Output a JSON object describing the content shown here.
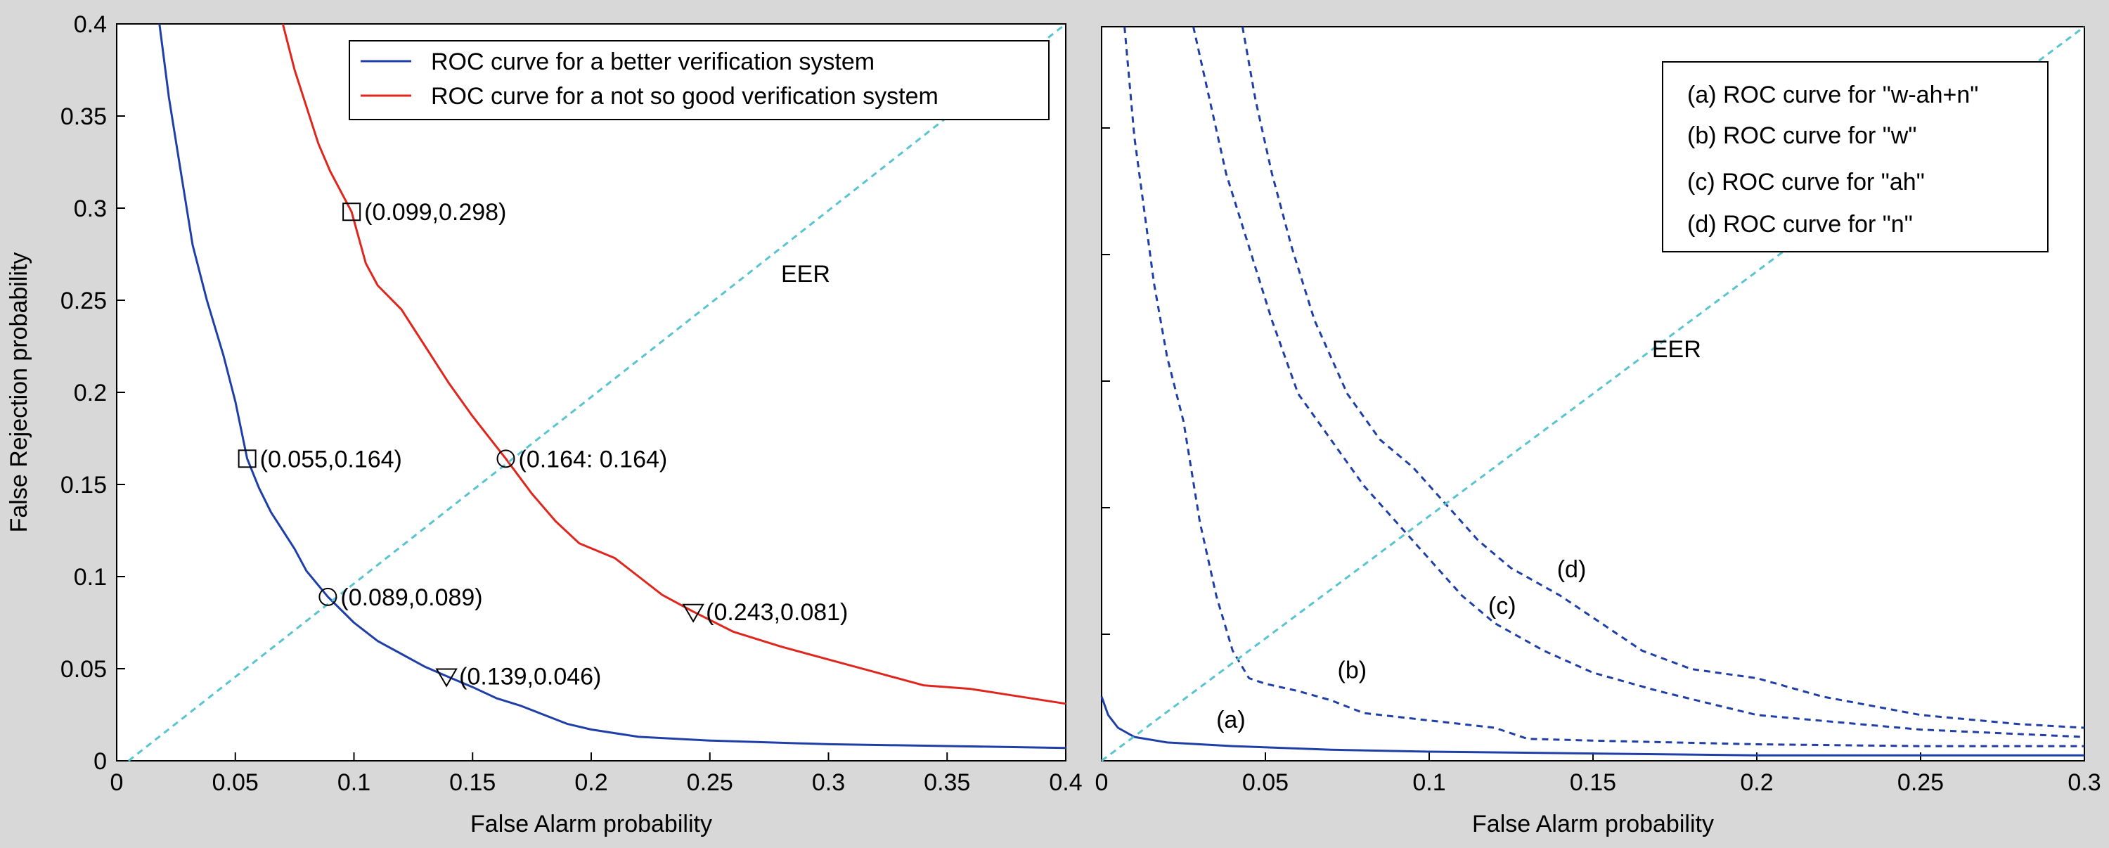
{
  "chart_data": [
    {
      "type": "line",
      "xlabel": "False Alarm probability",
      "ylabel": "False Rejection probability",
      "xlim": [
        0,
        0.4
      ],
      "ylim": [
        0,
        0.4
      ],
      "xticks": [
        "0",
        "0.05",
        "0.1",
        "0.15",
        "0.2",
        "0.25",
        "0.3",
        "0.35",
        "0.4"
      ],
      "yticks": [
        "0",
        "0.05",
        "0.1",
        "0.15",
        "0.2",
        "0.25",
        "0.3",
        "0.35",
        "0.4"
      ],
      "legend_position": "top-right",
      "eer_label": "EER",
      "series": [
        {
          "name": "ROC curve for a better verification system",
          "color": "#1f3fa8",
          "style": "solid",
          "points": [
            [
              0.018,
              0.4
            ],
            [
              0.022,
              0.36
            ],
            [
              0.027,
              0.32
            ],
            [
              0.032,
              0.28
            ],
            [
              0.038,
              0.25
            ],
            [
              0.045,
              0.22
            ],
            [
              0.05,
              0.195
            ],
            [
              0.055,
              0.164
            ],
            [
              0.06,
              0.148
            ],
            [
              0.065,
              0.135
            ],
            [
              0.07,
              0.125
            ],
            [
              0.075,
              0.115
            ],
            [
              0.08,
              0.103
            ],
            [
              0.089,
              0.089
            ],
            [
              0.1,
              0.075
            ],
            [
              0.11,
              0.065
            ],
            [
              0.12,
              0.058
            ],
            [
              0.13,
              0.051
            ],
            [
              0.139,
              0.046
            ],
            [
              0.15,
              0.04
            ],
            [
              0.16,
              0.034
            ],
            [
              0.17,
              0.03
            ],
            [
              0.18,
              0.025
            ],
            [
              0.19,
              0.02
            ],
            [
              0.2,
              0.017
            ],
            [
              0.22,
              0.013
            ],
            [
              0.25,
              0.011
            ],
            [
              0.3,
              0.009
            ],
            [
              0.35,
              0.008
            ],
            [
              0.4,
              0.007
            ]
          ]
        },
        {
          "name": "ROC curve for a not so good verification system",
          "color": "#e0261c",
          "style": "solid",
          "points": [
            [
              0.07,
              0.4
            ],
            [
              0.075,
              0.375
            ],
            [
              0.08,
              0.355
            ],
            [
              0.085,
              0.335
            ],
            [
              0.09,
              0.32
            ],
            [
              0.099,
              0.298
            ],
            [
              0.105,
              0.27
            ],
            [
              0.11,
              0.258
            ],
            [
              0.12,
              0.245
            ],
            [
              0.13,
              0.225
            ],
            [
              0.14,
              0.205
            ],
            [
              0.15,
              0.187
            ],
            [
              0.164,
              0.164
            ],
            [
              0.175,
              0.145
            ],
            [
              0.185,
              0.13
            ],
            [
              0.195,
              0.118
            ],
            [
              0.21,
              0.11
            ],
            [
              0.22,
              0.1
            ],
            [
              0.23,
              0.09
            ],
            [
              0.243,
              0.081
            ],
            [
              0.26,
              0.07
            ],
            [
              0.28,
              0.062
            ],
            [
              0.3,
              0.055
            ],
            [
              0.32,
              0.048
            ],
            [
              0.34,
              0.041
            ],
            [
              0.36,
              0.039
            ],
            [
              0.38,
              0.035
            ],
            [
              0.4,
              0.031
            ]
          ]
        },
        {
          "name": "",
          "color": "#57c4d0",
          "style": "dashed",
          "points": [
            [
              0.005,
              0.0
            ],
            [
              0.4,
              0.4
            ]
          ]
        }
      ],
      "markers": [
        {
          "shape": "square",
          "x": 0.099,
          "y": 0.298,
          "label": "(0.099,0.298)"
        },
        {
          "shape": "square",
          "x": 0.055,
          "y": 0.164,
          "label": "(0.055,0.164)"
        },
        {
          "shape": "circle",
          "x": 0.164,
          "y": 0.164,
          "label": "(0.164: 0.164)"
        },
        {
          "shape": "circle",
          "x": 0.089,
          "y": 0.089,
          "label": "(0.089,0.089)"
        },
        {
          "shape": "triangle",
          "x": 0.243,
          "y": 0.081,
          "label": "(0.243,0.081)"
        },
        {
          "shape": "triangle",
          "x": 0.139,
          "y": 0.046,
          "label": "(0.139,0.046)"
        }
      ]
    },
    {
      "type": "line",
      "xlabel": "False Alarm probability",
      "ylabel": "",
      "xlim": [
        0,
        0.3
      ],
      "ylim": [
        0,
        0.4
      ],
      "xticks": [
        "0",
        "0.05",
        "0.1",
        "0.15",
        "0.2",
        "0.25",
        "0.3"
      ],
      "yticks": [],
      "legend_position": "top-right",
      "eer_label": "EER",
      "series": [
        {
          "name": "(a) ROC curve for \"w-ah+n\"",
          "tag": "(a)",
          "color": "#1f3fa8",
          "style": "solid",
          "points": [
            [
              0.0,
              0.035
            ],
            [
              0.002,
              0.025
            ],
            [
              0.005,
              0.018
            ],
            [
              0.01,
              0.013
            ],
            [
              0.02,
              0.01
            ],
            [
              0.04,
              0.008
            ],
            [
              0.07,
              0.006
            ],
            [
              0.1,
              0.005
            ],
            [
              0.15,
              0.004
            ],
            [
              0.2,
              0.003
            ],
            [
              0.3,
              0.003
            ]
          ]
        },
        {
          "name": "(b) ROC curve for \"w\"",
          "tag": "(b)",
          "color": "#1f3fa8",
          "style": "dashed",
          "points": [
            [
              0.007,
              0.4
            ],
            [
              0.01,
              0.34
            ],
            [
              0.013,
              0.3
            ],
            [
              0.016,
              0.26
            ],
            [
              0.02,
              0.22
            ],
            [
              0.025,
              0.185
            ],
            [
              0.03,
              0.13
            ],
            [
              0.035,
              0.09
            ],
            [
              0.04,
              0.06
            ],
            [
              0.045,
              0.045
            ],
            [
              0.05,
              0.042
            ],
            [
              0.06,
              0.038
            ],
            [
              0.07,
              0.033
            ],
            [
              0.08,
              0.026
            ],
            [
              0.1,
              0.022
            ],
            [
              0.12,
              0.018
            ],
            [
              0.13,
              0.012
            ],
            [
              0.15,
              0.011
            ],
            [
              0.2,
              0.009
            ],
            [
              0.25,
              0.008
            ],
            [
              0.3,
              0.008
            ]
          ]
        },
        {
          "name": "(c) ROC curve for \"ah\"",
          "tag": "(c)",
          "color": "#1f3fa8",
          "style": "dashed",
          "points": [
            [
              0.028,
              0.4
            ],
            [
              0.033,
              0.36
            ],
            [
              0.038,
              0.32
            ],
            [
              0.045,
              0.28
            ],
            [
              0.052,
              0.24
            ],
            [
              0.06,
              0.2
            ],
            [
              0.07,
              0.175
            ],
            [
              0.08,
              0.15
            ],
            [
              0.09,
              0.13
            ],
            [
              0.1,
              0.11
            ],
            [
              0.11,
              0.09
            ],
            [
              0.12,
              0.075
            ],
            [
              0.135,
              0.06
            ],
            [
              0.15,
              0.048
            ],
            [
              0.17,
              0.038
            ],
            [
              0.2,
              0.025
            ],
            [
              0.25,
              0.017
            ],
            [
              0.3,
              0.013
            ]
          ]
        },
        {
          "name": "(d) ROC curve for \"n\"",
          "tag": "(d)",
          "color": "#1f3fa8",
          "style": "dashed",
          "points": [
            [
              0.043,
              0.4
            ],
            [
              0.047,
              0.36
            ],
            [
              0.052,
              0.32
            ],
            [
              0.058,
              0.28
            ],
            [
              0.065,
              0.24
            ],
            [
              0.075,
              0.2
            ],
            [
              0.085,
              0.175
            ],
            [
              0.095,
              0.16
            ],
            [
              0.105,
              0.14
            ],
            [
              0.115,
              0.12
            ],
            [
              0.125,
              0.105
            ],
            [
              0.14,
              0.09
            ],
            [
              0.15,
              0.078
            ],
            [
              0.165,
              0.06
            ],
            [
              0.18,
              0.05
            ],
            [
              0.2,
              0.045
            ],
            [
              0.22,
              0.035
            ],
            [
              0.25,
              0.025
            ],
            [
              0.28,
              0.02
            ],
            [
              0.3,
              0.018
            ]
          ]
        },
        {
          "name": "",
          "color": "#57c4d0",
          "style": "dashed",
          "points": [
            [
              0.0,
              0.0
            ],
            [
              0.3,
              0.4
            ]
          ]
        }
      ],
      "curve_tags": [
        {
          "text": "(a)",
          "x": 0.035,
          "y": 0.018
        },
        {
          "text": "(b)",
          "x": 0.072,
          "y": 0.045
        },
        {
          "text": "(c)",
          "x": 0.118,
          "y": 0.08
        },
        {
          "text": "(d)",
          "x": 0.139,
          "y": 0.1
        }
      ]
    }
  ]
}
